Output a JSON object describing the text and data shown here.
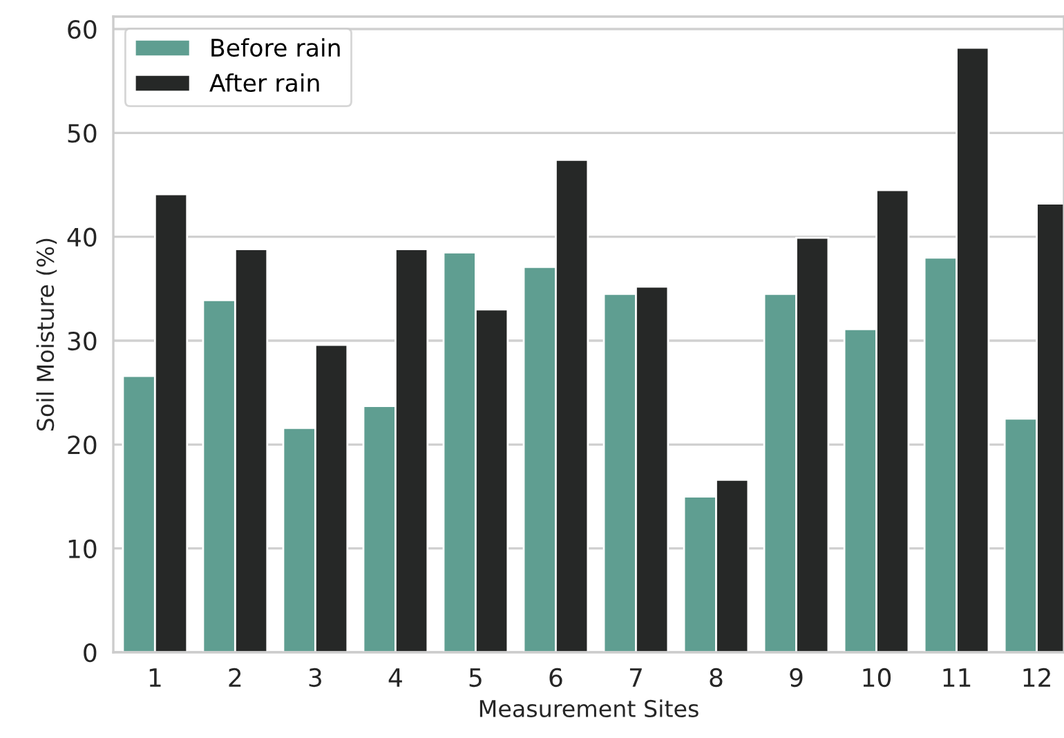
{
  "chart_data": {
    "type": "bar",
    "xlabel": "Measurement Sites",
    "ylabel": "Soil Moisture (%)",
    "categories": [
      "1",
      "2",
      "3",
      "4",
      "5",
      "6",
      "7",
      "8",
      "9",
      "10",
      "11",
      "12"
    ],
    "series": [
      {
        "name": "Before rain",
        "color": "#5f9e91",
        "values": [
          26.6,
          33.9,
          21.6,
          23.7,
          38.5,
          37.1,
          34.5,
          15.0,
          34.5,
          31.1,
          38.0,
          22.5
        ]
      },
      {
        "name": "After rain",
        "color": "#262827",
        "values": [
          44.1,
          38.8,
          29.6,
          38.8,
          33.0,
          47.4,
          35.2,
          16.6,
          39.9,
          44.5,
          58.2,
          43.2
        ]
      }
    ],
    "ylim": [
      0,
      61.2
    ],
    "yticks": [
      0,
      10,
      20,
      30,
      40,
      50,
      60
    ],
    "grid": "y",
    "legend": "top left"
  }
}
